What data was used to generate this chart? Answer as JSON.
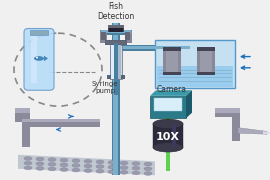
{
  "bg_color": "#f0f0f0",
  "fish_detection_label": "Fish\nDetection",
  "syringe_pump_label": "Syringe\npump",
  "camera_label": "Camera",
  "magnification_label": "10X",
  "colors": {
    "pipe_blue_dark": "#4a7fa0",
    "pipe_blue_light": "#7ab0cc",
    "device_dark": "#444455",
    "device_mid": "#666677",
    "device_light": "#888899",
    "syringe_body": "#c8d8e8",
    "syringe_dark": "#556677",
    "water_tank_outline": "#5599cc",
    "water_tank_bg": "#c5e0f0",
    "water_fill": "#99ccee",
    "camera_dark": "#1a5a6a",
    "camera_mid": "#2a7a8a",
    "camera_light": "#3a9aaa",
    "lens_dark": "#2a2a3a",
    "lens_mid": "#3a3a4a",
    "lens_green": "#44cc33",
    "stage_dark": "#6a6a7a",
    "stage_mid": "#8a8a9a",
    "stage_light": "#aaaabc",
    "arrow_blue": "#1a70bb",
    "text_dark": "#333333",
    "vial_blue": "#b8ddf8",
    "vial_edge": "#6699cc",
    "fish_blue": "#4488bb",
    "dashed_gray": "#888888",
    "well_plate": "#c0c8d0",
    "well_dark": "#9a9aaa"
  }
}
